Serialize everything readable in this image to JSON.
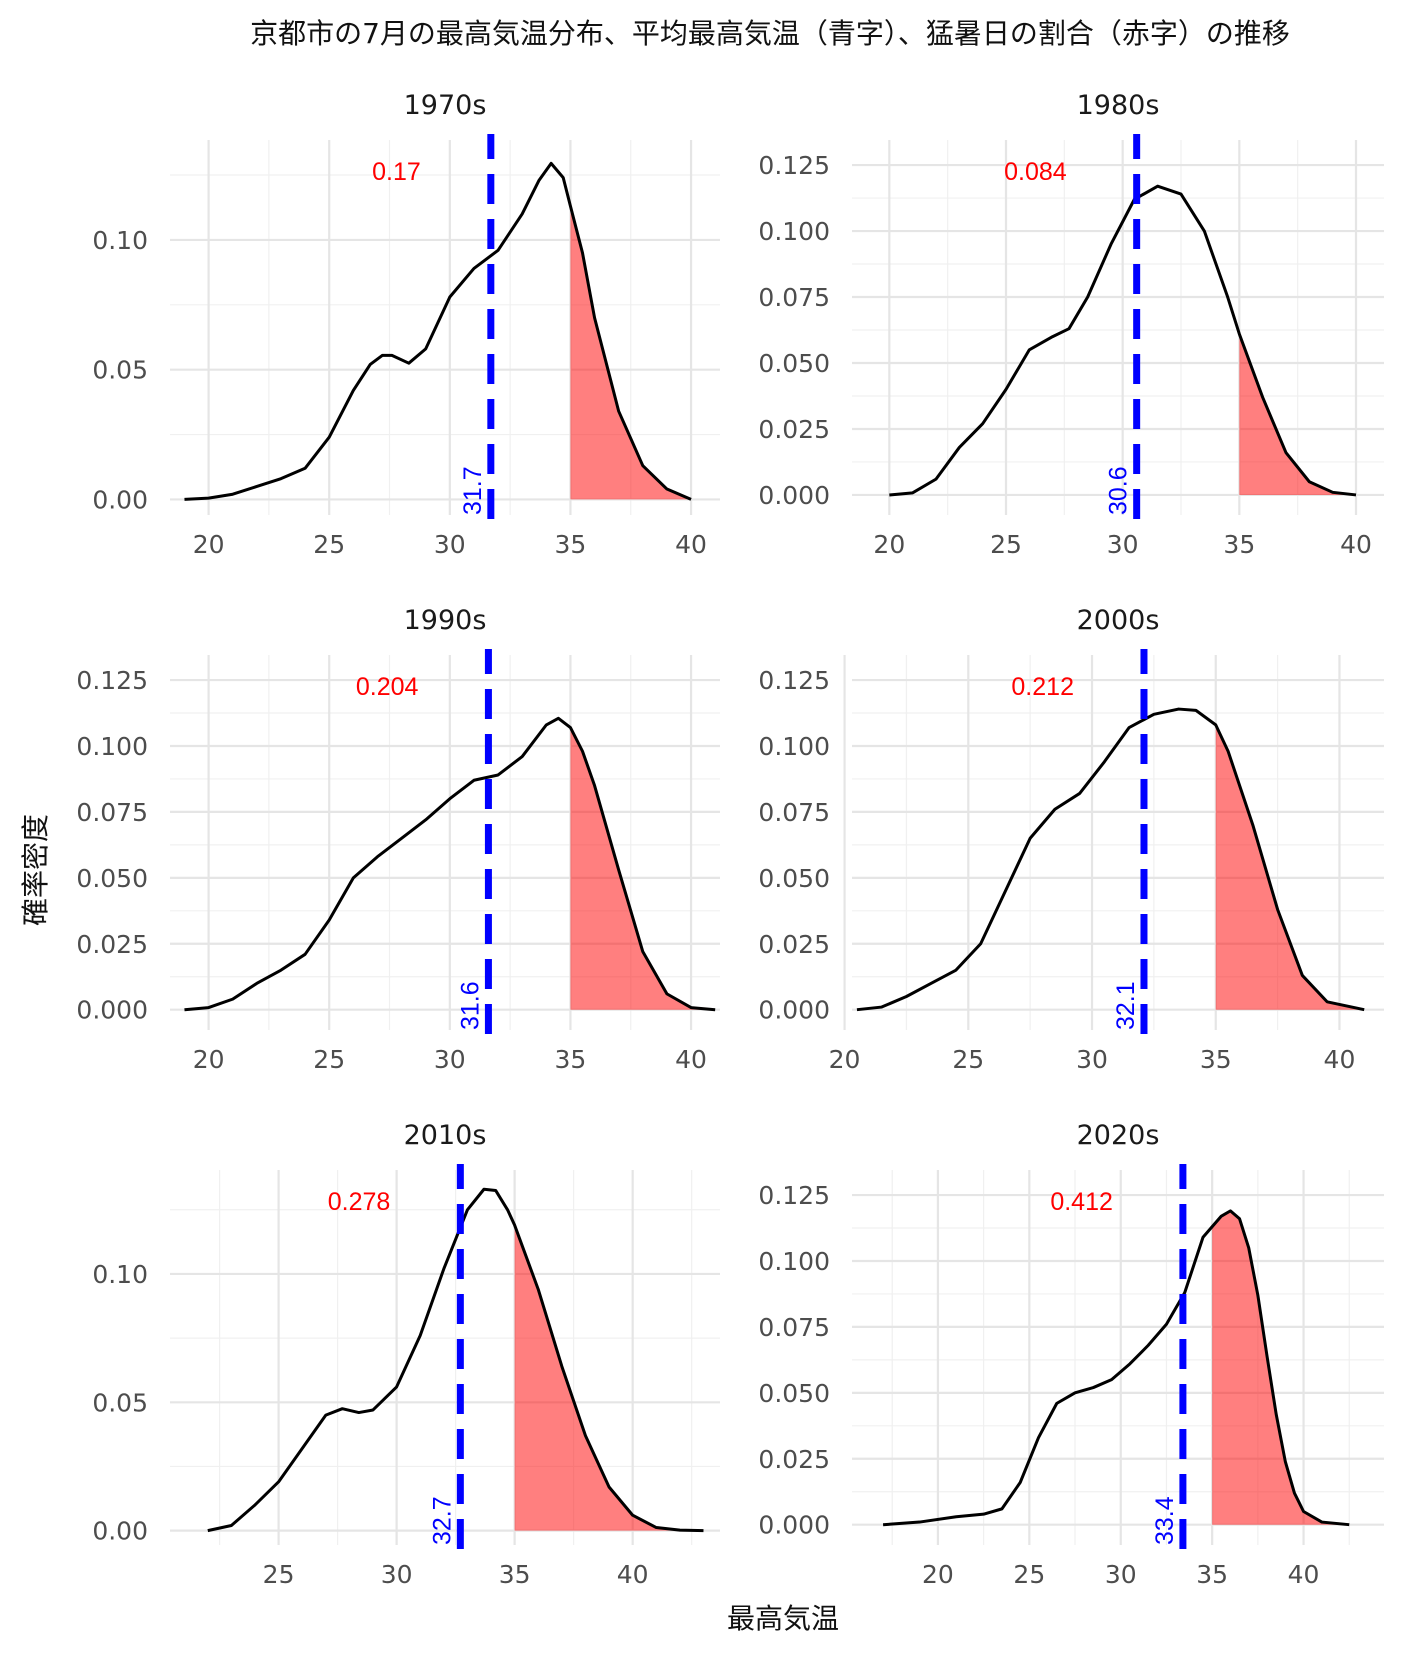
{
  "chart_data": {
    "type": "area",
    "title": "京都市の7月の最高気温分布、平均最高気温（青字）、猛暑日の割合（赤字）の推移",
    "xlabel": "最高気温",
    "ylabel": "確率密度",
    "threshold": 35,
    "colors": {
      "curve": "#000000",
      "fill": "#ff0000",
      "mean": "#0000ff",
      "ratio": "#ff0000"
    },
    "facets": [
      {
        "label": "1970s",
        "mean": 31.7,
        "mean_label": "31.7",
        "ratio": 0.17,
        "ratio_label": "0.17",
        "xlim": [
          18.4,
          41.2
        ],
        "ylim": [
          -0.006,
          0.1385
        ],
        "xticks": [
          20,
          25,
          30,
          35,
          40
        ],
        "xtick_labels": [
          "20",
          "25",
          "30",
          "35",
          "40"
        ],
        "yticks": [
          0,
          0.05,
          0.1
        ],
        "ytick_labels": [
          "0.00",
          "0.05",
          "0.10"
        ],
        "curve": [
          [
            19,
            0
          ],
          [
            20,
            0.0005
          ],
          [
            21,
            0.002
          ],
          [
            22,
            0.005
          ],
          [
            23,
            0.008
          ],
          [
            24,
            0.012
          ],
          [
            25,
            0.024
          ],
          [
            26,
            0.042
          ],
          [
            26.7,
            0.052
          ],
          [
            27.2,
            0.0555
          ],
          [
            27.6,
            0.0555
          ],
          [
            28.3,
            0.0525
          ],
          [
            29,
            0.058
          ],
          [
            30,
            0.078
          ],
          [
            31,
            0.089
          ],
          [
            32,
            0.096
          ],
          [
            33,
            0.11
          ],
          [
            33.7,
            0.123
          ],
          [
            34.2,
            0.1295
          ],
          [
            34.7,
            0.124
          ],
          [
            35,
            0.113
          ],
          [
            35.5,
            0.095
          ],
          [
            36,
            0.07
          ],
          [
            37,
            0.034
          ],
          [
            38,
            0.013
          ],
          [
            39,
            0.004
          ],
          [
            40,
            0
          ]
        ]
      },
      {
        "label": "1980s",
        "mean": 30.6,
        "mean_label": "30.6",
        "ratio": 0.084,
        "ratio_label": "0.084",
        "xlim": [
          18.4,
          41.2
        ],
        "ylim": [
          -0.0076,
          0.1345
        ],
        "xticks": [
          20,
          25,
          30,
          35,
          40
        ],
        "xtick_labels": [
          "20",
          "25",
          "30",
          "35",
          "40"
        ],
        "yticks": [
          0,
          0.025,
          0.05,
          0.075,
          0.1,
          0.125
        ],
        "ytick_labels": [
          "0.000",
          "0.025",
          "0.050",
          "0.075",
          "0.100",
          "0.125"
        ],
        "curve": [
          [
            20,
            0
          ],
          [
            21,
            0.0008
          ],
          [
            22,
            0.006
          ],
          [
            23,
            0.018
          ],
          [
            24,
            0.027
          ],
          [
            25,
            0.04
          ],
          [
            26,
            0.055
          ],
          [
            27,
            0.06
          ],
          [
            27.7,
            0.063
          ],
          [
            28.5,
            0.075
          ],
          [
            29.5,
            0.095
          ],
          [
            30.5,
            0.112
          ],
          [
            31.5,
            0.117
          ],
          [
            32.5,
            0.114
          ],
          [
            33.5,
            0.1
          ],
          [
            34.5,
            0.075
          ],
          [
            35,
            0.061
          ],
          [
            36,
            0.037
          ],
          [
            37,
            0.016
          ],
          [
            38,
            0.005
          ],
          [
            39,
            0.001
          ],
          [
            40,
            0
          ]
        ]
      },
      {
        "label": "1990s",
        "mean": 31.6,
        "mean_label": "31.6",
        "ratio": 0.204,
        "ratio_label": "0.204",
        "xlim": [
          18.4,
          41.2
        ],
        "ylim": [
          -0.0077,
          0.1345
        ],
        "xticks": [
          20,
          25,
          30,
          35,
          40
        ],
        "xtick_labels": [
          "20",
          "25",
          "30",
          "35",
          "40"
        ],
        "yticks": [
          0,
          0.025,
          0.05,
          0.075,
          0.1,
          0.125
        ],
        "ytick_labels": [
          "0.000",
          "0.025",
          "0.050",
          "0.075",
          "0.100",
          "0.125"
        ],
        "curve": [
          [
            19,
            0
          ],
          [
            20,
            0.0008
          ],
          [
            21,
            0.004
          ],
          [
            22,
            0.01
          ],
          [
            23,
            0.015
          ],
          [
            24,
            0.021
          ],
          [
            25,
            0.034
          ],
          [
            26,
            0.05
          ],
          [
            27,
            0.058
          ],
          [
            28,
            0.065
          ],
          [
            29,
            0.072
          ],
          [
            30,
            0.08
          ],
          [
            31,
            0.087
          ],
          [
            32,
            0.089
          ],
          [
            33,
            0.096
          ],
          [
            34,
            0.108
          ],
          [
            34.5,
            0.1105
          ],
          [
            35,
            0.107
          ],
          [
            35.5,
            0.098
          ],
          [
            36,
            0.085
          ],
          [
            37,
            0.053
          ],
          [
            38,
            0.022
          ],
          [
            39,
            0.006
          ],
          [
            40,
            0.0008
          ],
          [
            41,
            0
          ]
        ]
      },
      {
        "label": "2000s",
        "mean": 32.1,
        "mean_label": "32.1",
        "ratio": 0.212,
        "ratio_label": "0.212",
        "xlim": [
          20.3,
          41.8
        ],
        "ylim": [
          -0.0077,
          0.1345
        ],
        "xticks": [
          20,
          25,
          30,
          35,
          40
        ],
        "xtick_labels": [
          "20",
          "25",
          "30",
          "35",
          "40"
        ],
        "yticks": [
          0,
          0.025,
          0.05,
          0.075,
          0.1,
          0.125
        ],
        "ytick_labels": [
          "0.000",
          "0.025",
          "0.050",
          "0.075",
          "0.100",
          "0.125"
        ],
        "curve": [
          [
            20.5,
            0
          ],
          [
            21.5,
            0.001
          ],
          [
            22.5,
            0.005
          ],
          [
            23.5,
            0.01
          ],
          [
            24.5,
            0.015
          ],
          [
            25.5,
            0.025
          ],
          [
            26.5,
            0.045
          ],
          [
            27.5,
            0.065
          ],
          [
            28.5,
            0.076
          ],
          [
            29.5,
            0.082
          ],
          [
            30.5,
            0.094
          ],
          [
            31.5,
            0.107
          ],
          [
            32.5,
            0.112
          ],
          [
            33.5,
            0.114
          ],
          [
            34.2,
            0.1135
          ],
          [
            35,
            0.108
          ],
          [
            35.5,
            0.098
          ],
          [
            36.5,
            0.07
          ],
          [
            37.5,
            0.038
          ],
          [
            38.5,
            0.013
          ],
          [
            39.5,
            0.003
          ],
          [
            41,
            0
          ]
        ]
      },
      {
        "label": "2010s",
        "mean": 32.7,
        "mean_label": "32.7",
        "ratio": 0.278,
        "ratio_label": "0.278",
        "xlim": [
          20.4,
          43.7
        ],
        "ylim": [
          -0.0056,
          0.1405
        ],
        "xticks": [
          25,
          30,
          35,
          40
        ],
        "xtick_labels": [
          "25",
          "30",
          "35",
          "40"
        ],
        "yticks": [
          0,
          0.05,
          0.1
        ],
        "ytick_labels": [
          "0.00",
          "0.05",
          "0.10"
        ],
        "curve": [
          [
            22,
            0
          ],
          [
            23,
            0.002
          ],
          [
            24,
            0.01
          ],
          [
            25,
            0.019
          ],
          [
            26,
            0.032
          ],
          [
            27,
            0.045
          ],
          [
            27.7,
            0.0475
          ],
          [
            28.4,
            0.046
          ],
          [
            29,
            0.047
          ],
          [
            30,
            0.056
          ],
          [
            31,
            0.076
          ],
          [
            32,
            0.102
          ],
          [
            33,
            0.125
          ],
          [
            33.7,
            0.133
          ],
          [
            34.2,
            0.1325
          ],
          [
            34.7,
            0.125
          ],
          [
            35,
            0.119
          ],
          [
            36,
            0.094
          ],
          [
            37,
            0.064
          ],
          [
            38,
            0.037
          ],
          [
            39,
            0.017
          ],
          [
            40,
            0.006
          ],
          [
            41,
            0.0012
          ],
          [
            42,
            0.0002
          ],
          [
            43,
            0
          ]
        ]
      },
      {
        "label": "2020s",
        "mean": 33.4,
        "mean_label": "33.4",
        "ratio": 0.412,
        "ratio_label": "0.412",
        "xlim": [
          15.3,
          44.4
        ],
        "ylim": [
          -0.0077,
          0.1345
        ],
        "xticks": [
          20,
          25,
          30,
          35,
          40
        ],
        "xtick_labels": [
          "20",
          "25",
          "30",
          "35",
          "40"
        ],
        "yticks": [
          0,
          0.025,
          0.05,
          0.075,
          0.1,
          0.125
        ],
        "ytick_labels": [
          "0.000",
          "0.025",
          "0.050",
          "0.075",
          "0.100",
          "0.125"
        ],
        "curve": [
          [
            17,
            0
          ],
          [
            19,
            0.001
          ],
          [
            21,
            0.003
          ],
          [
            22.5,
            0.004
          ],
          [
            23.5,
            0.006
          ],
          [
            24.5,
            0.016
          ],
          [
            25.5,
            0.033
          ],
          [
            26.5,
            0.046
          ],
          [
            27.5,
            0.05
          ],
          [
            28.5,
            0.052
          ],
          [
            29.5,
            0.055
          ],
          [
            30.5,
            0.061
          ],
          [
            31.5,
            0.068
          ],
          [
            32.5,
            0.076
          ],
          [
            33.5,
            0.088
          ],
          [
            34.5,
            0.109
          ],
          [
            35.5,
            0.117
          ],
          [
            36,
            0.119
          ],
          [
            36.5,
            0.116
          ],
          [
            37,
            0.105
          ],
          [
            37.5,
            0.087
          ],
          [
            38,
            0.064
          ],
          [
            38.5,
            0.042
          ],
          [
            39,
            0.024
          ],
          [
            39.5,
            0.012
          ],
          [
            40,
            0.005
          ],
          [
            41,
            0.001
          ],
          [
            42.5,
            0
          ]
        ]
      }
    ]
  }
}
